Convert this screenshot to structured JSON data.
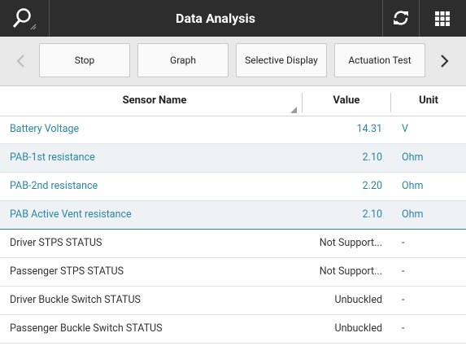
{
  "header": {
    "title": "Data Analysis"
  },
  "toolbar": {
    "buttons": [
      "Stop",
      "Graph",
      "Selective Display",
      "Actuation Test"
    ]
  },
  "table": {
    "columns": [
      "Sensor Name",
      "Value",
      "Unit"
    ],
    "rows": [
      [
        "Battery Voltage",
        "14.31",
        "V"
      ],
      [
        "PAB-1st resistance",
        "2.10",
        "Ohm"
      ],
      [
        "PAB-2nd resistance",
        "2.20",
        "Ohm"
      ],
      [
        "PAB Active Vent resistance",
        "2.10",
        "Ohm"
      ],
      [
        "Driver STPS STATUS",
        "Not Support...",
        "-"
      ],
      [
        "Passenger STPS STATUS",
        "Not Support...",
        "-"
      ],
      [
        "Driver Buckle Switch STATUS",
        "Unbuckled",
        "-"
      ],
      [
        "Passenger Buckle Switch STATUS",
        "Unbuckled",
        "-"
      ]
    ]
  }
}
